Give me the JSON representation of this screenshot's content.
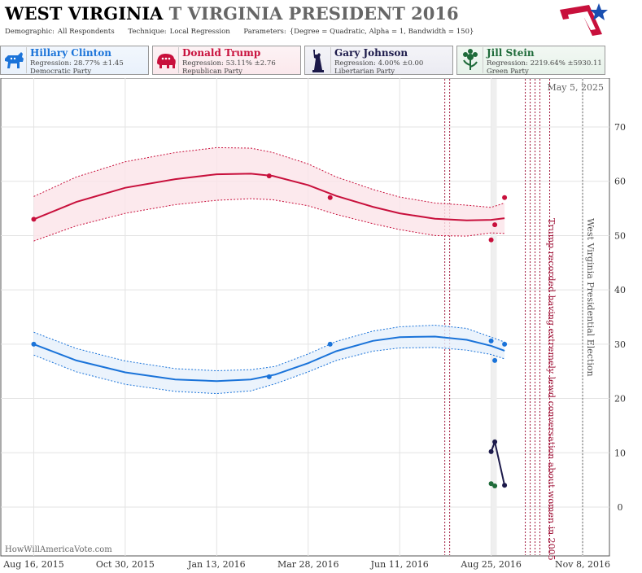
{
  "header": {
    "title_bold": "WEST VIRGINIA",
    "title_rest": "T VIRGINIA PRESIDENT 2016",
    "demographic_label": "Demographic:",
    "demographic_value": "All Respondents",
    "technique_label": "Technique:",
    "technique_value": "Local Regression",
    "parameters_label": "Parameters:",
    "parameters_value": "{Degree = Quadratic, Alpha = 1, Bandwidth = 150}"
  },
  "candidates": [
    {
      "name": "Hillary Clinton",
      "regression": "Regression: 28.77% ±1.45",
      "party": "Democratic Party",
      "color": "#1a73d9",
      "icon": "donkey-icon"
    },
    {
      "name": "Donald Trump",
      "regression": "Regression: 53.11% ±2.76",
      "party": "Republican Party",
      "color": "#c8103c",
      "icon": "elephant-icon"
    },
    {
      "name": "Gary Johnson",
      "regression": "Regression: 4.00% ±0.00",
      "party": "Libertarian Party",
      "color": "#1c1a4a",
      "icon": "liberty-statue-icon"
    },
    {
      "name": "Jill Stein",
      "regression": "Regression: 2219.64% ±5930.11",
      "party": "Green Party",
      "color": "#1f6b3a",
      "icon": "flower-icon"
    }
  ],
  "chart_data": {
    "type": "line",
    "date_stamp": "May 5, 2025",
    "watermark": "HowWillAmericaVote.com",
    "x_ticks": [
      "Aug 16, 2015",
      "Oct 30, 2015",
      "Jan 13, 2016",
      "Mar 28, 2016",
      "Jun 11, 2016",
      "Aug 25, 2016",
      "Nov 8, 2016"
    ],
    "x_range": [
      "2015-07-20",
      "2016-11-30"
    ],
    "y_ticks": [
      0,
      10,
      20,
      30,
      40,
      50,
      60,
      70
    ],
    "ylim": [
      -9,
      79
    ],
    "grid": true,
    "events": [
      {
        "date": "2016-10-07",
        "label": "Trump recorded having extremely lewd conversation about women in 2005",
        "color": "#a0163a"
      },
      {
        "date": "2016-11-08",
        "label": "West Virginia Presidential Election",
        "color": "#555555"
      }
    ],
    "vlines": [
      "2016-07-18",
      "2016-07-22",
      "2016-09-22",
      "2016-09-26",
      "2016-09-30",
      "2016-10-04",
      "2016-10-12",
      "2016-11-08"
    ],
    "shaded_date": "2016-08-27",
    "series": [
      {
        "name": "Donald Trump",
        "color": "#c8103c",
        "points": [
          [
            "2015-08-16",
            53
          ],
          [
            "2016-02-25",
            61
          ],
          [
            "2016-04-15",
            57
          ],
          [
            "2016-08-25",
            49.2
          ],
          [
            "2016-08-28",
            52
          ],
          [
            "2016-09-05",
            57
          ]
        ],
        "fit": [
          [
            "2015-08-16",
            53
          ],
          [
            "2015-09-20",
            56.2
          ],
          [
            "2015-10-30",
            58.8
          ],
          [
            "2015-12-10",
            60.4
          ],
          [
            "2016-01-13",
            61.3
          ],
          [
            "2016-02-10",
            61.4
          ],
          [
            "2016-02-28",
            61
          ],
          [
            "2016-03-28",
            59.3
          ],
          [
            "2016-04-20",
            57.3
          ],
          [
            "2016-05-20",
            55.3
          ],
          [
            "2016-06-11",
            54.1
          ],
          [
            "2016-07-10",
            53.1
          ],
          [
            "2016-08-05",
            52.8
          ],
          [
            "2016-08-25",
            52.9
          ],
          [
            "2016-09-05",
            53.2
          ]
        ],
        "upper": [
          [
            "2015-08-16",
            57.2
          ],
          [
            "2015-09-20",
            60.8
          ],
          [
            "2015-10-30",
            63.6
          ],
          [
            "2015-12-10",
            65.3
          ],
          [
            "2016-01-13",
            66.2
          ],
          [
            "2016-02-10",
            66.1
          ],
          [
            "2016-02-28",
            65.3
          ],
          [
            "2016-03-28",
            63.2
          ],
          [
            "2016-04-20",
            60.8
          ],
          [
            "2016-05-20",
            58.5
          ],
          [
            "2016-06-11",
            57.1
          ],
          [
            "2016-07-10",
            56
          ],
          [
            "2016-08-05",
            55.6
          ],
          [
            "2016-08-25",
            55.2
          ],
          [
            "2016-09-05",
            56
          ]
        ],
        "lower": [
          [
            "2015-08-16",
            49
          ],
          [
            "2015-09-20",
            51.8
          ],
          [
            "2015-10-30",
            54.1
          ],
          [
            "2015-12-10",
            55.7
          ],
          [
            "2016-01-13",
            56.5
          ],
          [
            "2016-02-10",
            56.8
          ],
          [
            "2016-02-28",
            56.6
          ],
          [
            "2016-03-28",
            55.5
          ],
          [
            "2016-04-20",
            53.9
          ],
          [
            "2016-05-20",
            52.2
          ],
          [
            "2016-06-11",
            51.1
          ],
          [
            "2016-07-10",
            50
          ],
          [
            "2016-08-05",
            49.9
          ],
          [
            "2016-08-25",
            50.5
          ],
          [
            "2016-09-05",
            50.4
          ]
        ]
      },
      {
        "name": "Hillary Clinton",
        "color": "#1a73d9",
        "points": [
          [
            "2015-08-16",
            30
          ],
          [
            "2016-02-25",
            24
          ],
          [
            "2016-04-15",
            30
          ],
          [
            "2016-08-25",
            30.6
          ],
          [
            "2016-08-28",
            27
          ],
          [
            "2016-09-05",
            30
          ]
        ],
        "fit": [
          [
            "2015-08-16",
            30
          ],
          [
            "2015-09-20",
            27
          ],
          [
            "2015-10-30",
            24.8
          ],
          [
            "2015-12-10",
            23.5
          ],
          [
            "2016-01-13",
            23.2
          ],
          [
            "2016-02-10",
            23.5
          ],
          [
            "2016-03-01",
            24.4
          ],
          [
            "2016-03-28",
            26.5
          ],
          [
            "2016-04-20",
            28.7
          ],
          [
            "2016-05-20",
            30.6
          ],
          [
            "2016-06-11",
            31.3
          ],
          [
            "2016-07-10",
            31.4
          ],
          [
            "2016-08-05",
            30.8
          ],
          [
            "2016-08-25",
            29.7
          ],
          [
            "2016-09-05",
            28.8
          ]
        ],
        "upper": [
          [
            "2015-08-16",
            32.2
          ],
          [
            "2015-09-20",
            29.2
          ],
          [
            "2015-10-30",
            26.9
          ],
          [
            "2015-12-10",
            25.5
          ],
          [
            "2016-01-13",
            25.1
          ],
          [
            "2016-02-10",
            25.3
          ],
          [
            "2016-03-01",
            25.9
          ],
          [
            "2016-03-28",
            28.2
          ],
          [
            "2016-04-20",
            30.5
          ],
          [
            "2016-05-20",
            32.4
          ],
          [
            "2016-06-11",
            33.2
          ],
          [
            "2016-07-10",
            33.5
          ],
          [
            "2016-08-05",
            32.9
          ],
          [
            "2016-08-25",
            31.3
          ],
          [
            "2016-09-05",
            30.4
          ]
        ],
        "lower": [
          [
            "2015-08-16",
            28
          ],
          [
            "2015-09-20",
            24.9
          ],
          [
            "2015-10-30",
            22.6
          ],
          [
            "2015-12-10",
            21.3
          ],
          [
            "2016-01-13",
            20.9
          ],
          [
            "2016-02-10",
            21.4
          ],
          [
            "2016-03-01",
            22.7
          ],
          [
            "2016-03-28",
            24.9
          ],
          [
            "2016-04-20",
            27
          ],
          [
            "2016-05-20",
            28.7
          ],
          [
            "2016-06-11",
            29.3
          ],
          [
            "2016-07-10",
            29.4
          ],
          [
            "2016-08-05",
            28.9
          ],
          [
            "2016-08-25",
            28.1
          ],
          [
            "2016-09-05",
            27.3
          ]
        ]
      },
      {
        "name": "Gary Johnson",
        "color": "#1c1a4a",
        "points": [
          [
            "2016-08-25",
            10.2
          ],
          [
            "2016-08-28",
            12
          ],
          [
            "2016-09-05",
            4
          ]
        ],
        "fit": [
          [
            "2016-08-25",
            10.2
          ],
          [
            "2016-08-28",
            12
          ],
          [
            "2016-09-05",
            4
          ]
        ]
      },
      {
        "name": "Jill Stein",
        "color": "#1f6b3a",
        "points": [
          [
            "2016-08-25",
            4.3
          ],
          [
            "2016-08-28",
            3.9
          ]
        ]
      }
    ]
  }
}
